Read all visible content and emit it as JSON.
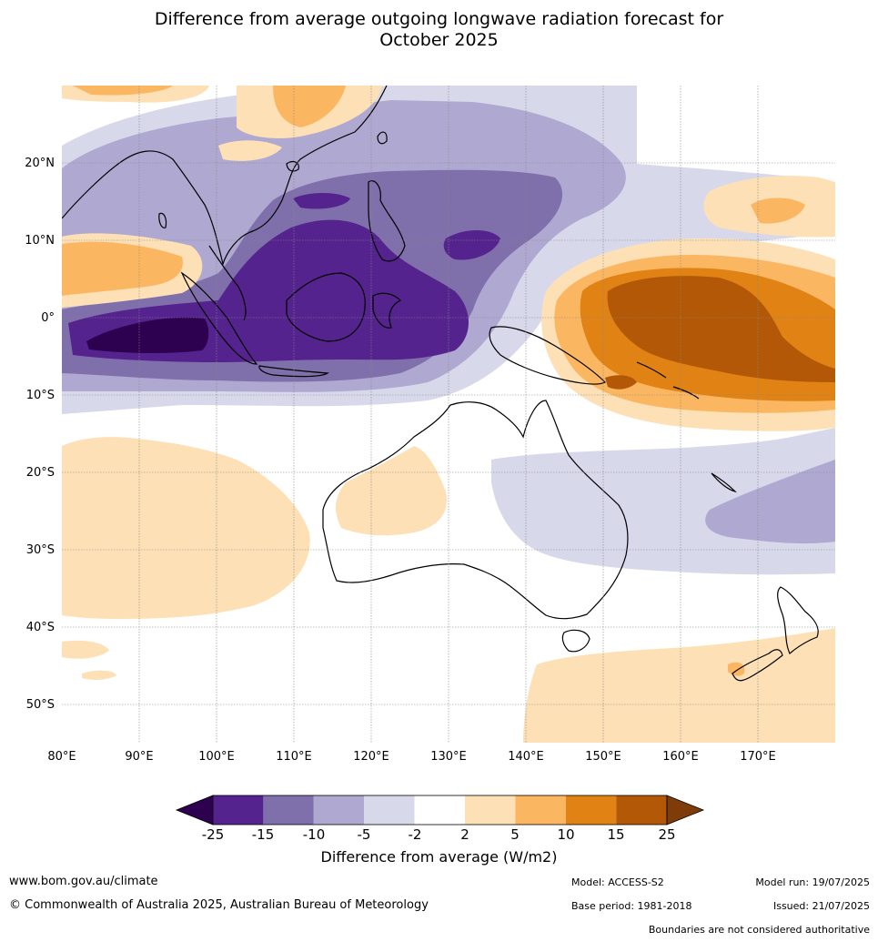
{
  "title_line1": "Difference from average outgoing longwave radiation forecast for",
  "title_line2": "October 2025",
  "map": {
    "lon_ticks": [
      "80°E",
      "90°E",
      "100°E",
      "110°E",
      "120°E",
      "130°E",
      "140°E",
      "150°E",
      "160°E",
      "170°E"
    ],
    "lat_ticks": [
      "20°N",
      "10°N",
      "0°",
      "10°S",
      "20°S",
      "30°S",
      "40°S",
      "50°S"
    ],
    "lon_range": [
      80,
      180
    ],
    "lat_range": [
      -55,
      30
    ]
  },
  "legend": {
    "title": "Difference from average (W/m2)",
    "ticks": [
      "-25",
      "-15",
      "-10",
      "-5",
      "-2",
      "2",
      "5",
      "10",
      "15",
      "25"
    ],
    "colors": {
      "lt_neg25": "#2d0050",
      "neg25_neg15": "#55238d",
      "neg15_neg10": "#7f6fab",
      "neg10_neg5": "#afa8d1",
      "neg5_neg2": "#d8d8eb",
      "neg2_2": "#ffffff",
      "pos2_5": "#fde0b5",
      "pos5_10": "#fbb662",
      "pos10_15": "#e08214",
      "pos15_25": "#b35806",
      "gt25": "#7f3b08"
    }
  },
  "footer": {
    "website": "www.bom.gov.au/climate",
    "copyright": "© Commonwealth of Australia 2025, Australian Bureau of Meteorology",
    "model": "Model: ACCESS-S2",
    "base_period": "Base period: 1981-2018",
    "model_run": "Model run: 19/07/2025",
    "issued": "Issued: 21/07/2025",
    "boundaries_note": "Boundaries are not considered authoritative"
  }
}
